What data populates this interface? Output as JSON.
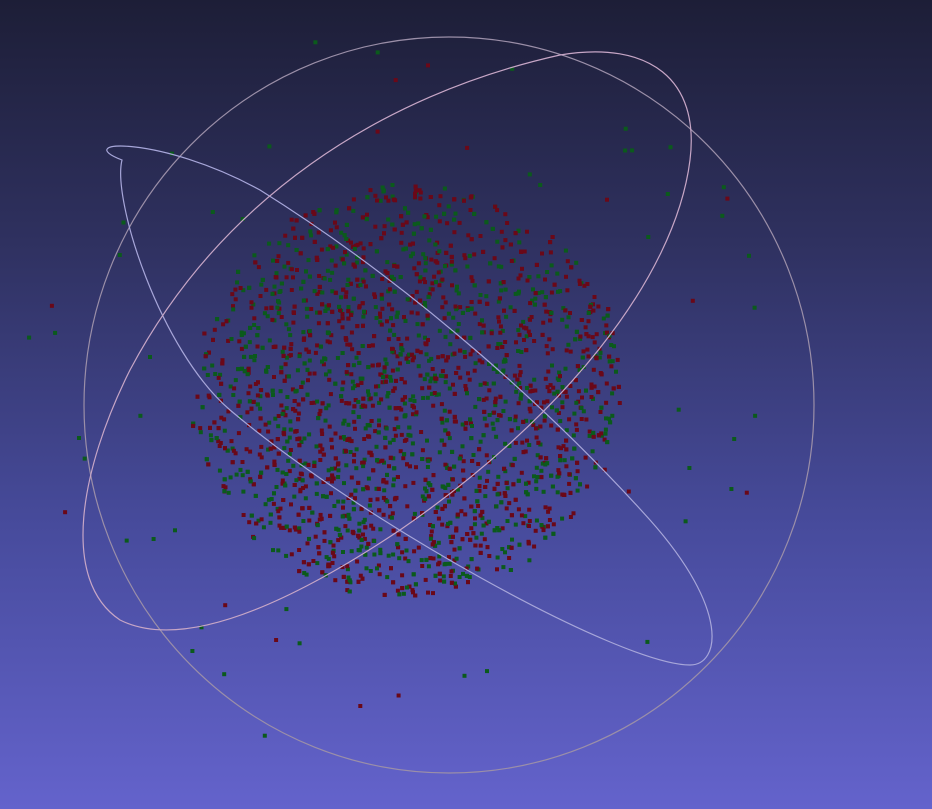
{
  "viewer": {
    "background_top": "#1d1e37",
    "background_bottom": "#6463cc"
  },
  "point_cloud": {
    "point_count": 2600,
    "colors": {
      "red": "#6a0818",
      "green": "#0b5a1c"
    },
    "color_mix_green_fraction": 0.42
  },
  "trackball": {
    "ring_colors": [
      "#9b8fa8",
      "#c7a6c6",
      "#a7a6d9"
    ],
    "handle_color": "#d7c4dc"
  }
}
